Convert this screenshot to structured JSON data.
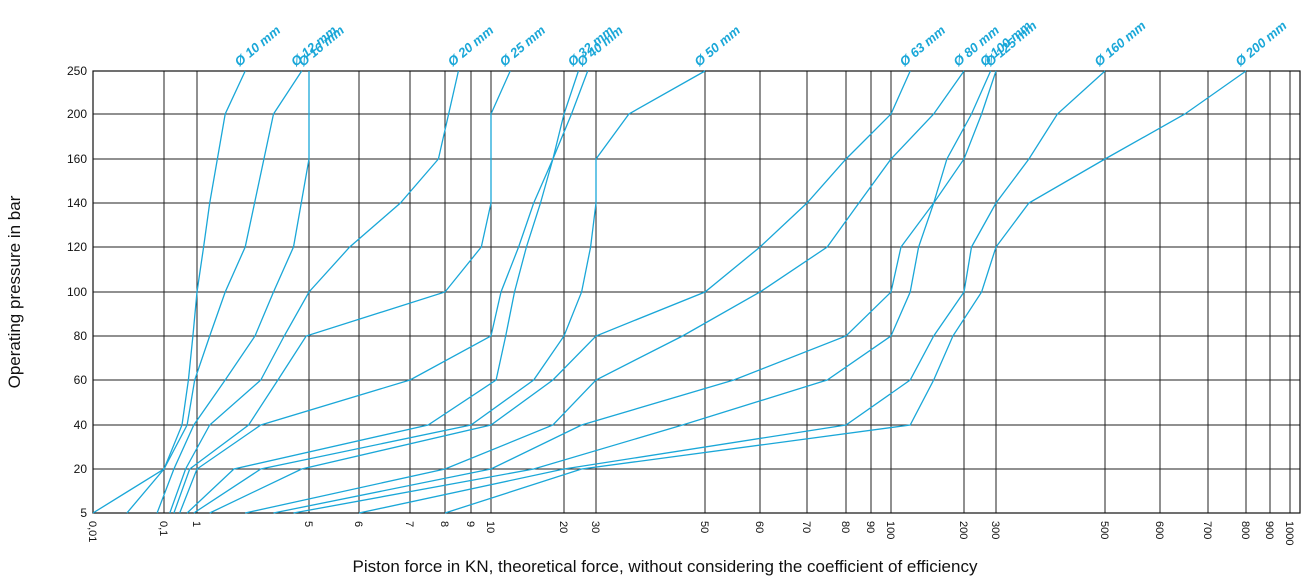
{
  "chart_data": {
    "type": "line",
    "title": "",
    "xlabel": "Piston force in KN, theoretical force, without considering the coefficient of efficiency",
    "ylabel": "Operating pressure in bar",
    "y_ticks": [
      5,
      20,
      40,
      60,
      80,
      100,
      120,
      140,
      160,
      200,
      250
    ],
    "x_ticks": [
      {
        "label": "0,01",
        "value": 0.01
      },
      {
        "label": "0,1",
        "value": 0.1
      },
      {
        "label": "1",
        "value": 1
      },
      {
        "label": "5",
        "value": 5
      },
      {
        "label": "6",
        "value": 6
      },
      {
        "label": "7",
        "value": 7
      },
      {
        "label": "8",
        "value": 8
      },
      {
        "label": "9",
        "value": 9
      },
      {
        "label": "10",
        "value": 10
      },
      {
        "label": "20",
        "value": 20
      },
      {
        "label": "30",
        "value": 30
      },
      {
        "label": "50",
        "value": 50
      },
      {
        "label": "60",
        "value": 60
      },
      {
        "label": "70",
        "value": 70
      },
      {
        "label": "80",
        "value": 80
      },
      {
        "label": "90",
        "value": 90
      },
      {
        "label": "100",
        "value": 100
      },
      {
        "label": "200",
        "value": 200
      },
      {
        "label": "300",
        "value": 300
      },
      {
        "label": "500",
        "value": 500
      },
      {
        "label": "600",
        "value": 600
      },
      {
        "label": "700",
        "value": 700
      },
      {
        "label": "800",
        "value": 800
      },
      {
        "label": "900",
        "value": 900
      },
      {
        "label": "1000",
        "value": 1000
      }
    ],
    "grid": true,
    "line_color": "#1aa7d8",
    "series": [
      {
        "name": "Ø 10 mm",
        "points": [
          [
            0.01,
            5
          ],
          [
            0.1,
            20
          ],
          [
            0.35,
            40
          ],
          [
            0.55,
            60
          ],
          [
            0.75,
            80
          ],
          [
            1,
            100
          ],
          [
            1.1,
            120
          ],
          [
            1.2,
            140
          ],
          [
            1.5,
            200
          ],
          [
            2,
            250
          ]
        ]
      },
      {
        "name": "Ø 12 mm",
        "points": [
          [
            0.03,
            5
          ],
          [
            0.1,
            20
          ],
          [
            0.5,
            40
          ],
          [
            0.85,
            60
          ],
          [
            1.2,
            80
          ],
          [
            1.5,
            100
          ],
          [
            2,
            120
          ],
          [
            3,
            200
          ],
          [
            4.5,
            250
          ]
        ]
      },
      {
        "name": "Ø 16 mm",
        "points": [
          [
            0.08,
            5
          ],
          [
            0.2,
            20
          ],
          [
            0.8,
            40
          ],
          [
            1.5,
            60
          ],
          [
            2.3,
            80
          ],
          [
            3,
            100
          ],
          [
            4,
            120
          ],
          [
            5,
            160
          ],
          [
            5,
            250
          ]
        ]
      },
      {
        "name": "Ø 20 mm",
        "points": [
          [
            0.15,
            5
          ],
          [
            0.45,
            20
          ],
          [
            1.2,
            40
          ],
          [
            2.5,
            60
          ],
          [
            3.5,
            80
          ],
          [
            5,
            100
          ],
          [
            5.8,
            120
          ],
          [
            6.8,
            140
          ],
          [
            7.8,
            160
          ],
          [
            8.5,
            250
          ]
        ]
      },
      {
        "name": "Ø 25 mm",
        "points": [
          [
            0.2,
            5
          ],
          [
            0.6,
            20
          ],
          [
            2.1,
            40
          ],
          [
            3.2,
            60
          ],
          [
            4.8,
            80
          ],
          [
            8,
            100
          ],
          [
            9.5,
            120
          ],
          [
            10,
            140
          ],
          [
            10,
            160
          ],
          [
            10,
            200
          ],
          [
            12,
            250
          ]
        ]
      },
      {
        "name": "Ø 32 mm",
        "points": [
          [
            0.3,
            5
          ],
          [
            1,
            20
          ],
          [
            2.5,
            40
          ],
          [
            7,
            60
          ],
          [
            10,
            80
          ],
          [
            11,
            100
          ],
          [
            13,
            120
          ],
          [
            15,
            140
          ],
          [
            18,
            160
          ],
          [
            20,
            200
          ],
          [
            24,
            250
          ]
        ]
      },
      {
        "name": "Ø 40 mm",
        "points": [
          [
            0.5,
            5
          ],
          [
            1.7,
            20
          ],
          [
            7.5,
            40
          ],
          [
            10.5,
            60
          ],
          [
            11.5,
            80
          ],
          [
            12.5,
            100
          ],
          [
            14,
            120
          ],
          [
            16,
            140
          ],
          [
            18,
            160
          ],
          [
            22,
            200
          ],
          [
            27,
            250
          ]
        ]
      },
      {
        "name": "Ø 50 mm",
        "points": [
          [
            0.8,
            5
          ],
          [
            2.5,
            20
          ],
          [
            9,
            40
          ],
          [
            15,
            60
          ],
          [
            20,
            80
          ],
          [
            25,
            100
          ],
          [
            28,
            120
          ],
          [
            30,
            140
          ],
          [
            30,
            160
          ],
          [
            35,
            200
          ],
          [
            50,
            250
          ]
        ]
      },
      {
        "name": "Ø 63 mm",
        "points": [
          [
            1.2,
            5
          ],
          [
            4.5,
            20
          ],
          [
            10,
            40
          ],
          [
            18,
            60
          ],
          [
            30,
            80
          ],
          [
            50,
            100
          ],
          [
            60,
            120
          ],
          [
            70,
            140
          ],
          [
            80,
            160
          ],
          [
            100,
            200
          ],
          [
            120,
            250
          ]
        ]
      },
      {
        "name": "Ø 80 mm",
        "points": [
          [
            2,
            5
          ],
          [
            8,
            20
          ],
          [
            18,
            40
          ],
          [
            30,
            60
          ],
          [
            45,
            80
          ],
          [
            60,
            100
          ],
          [
            75,
            120
          ],
          [
            85,
            140
          ],
          [
            100,
            160
          ],
          [
            150,
            200
          ],
          [
            200,
            250
          ]
        ]
      },
      {
        "name": "Ø 100 mm",
        "points": [
          [
            3,
            5
          ],
          [
            10,
            20
          ],
          [
            25,
            40
          ],
          [
            55,
            60
          ],
          [
            80,
            80
          ],
          [
            100,
            100
          ],
          [
            110,
            120
          ],
          [
            150,
            140
          ],
          [
            170,
            160
          ],
          [
            220,
            200
          ],
          [
            280,
            250
          ]
        ]
      },
      {
        "name": "Ø 125 mm",
        "points": [
          [
            4,
            5
          ],
          [
            15,
            20
          ],
          [
            45,
            40
          ],
          [
            75,
            60
          ],
          [
            100,
            80
          ],
          [
            120,
            100
          ],
          [
            130,
            120
          ],
          [
            150,
            140
          ],
          [
            200,
            160
          ],
          [
            250,
            200
          ],
          [
            300,
            250
          ]
        ]
      },
      {
        "name": "Ø 160 mm",
        "points": [
          [
            6,
            5
          ],
          [
            20,
            20
          ],
          [
            80,
            40
          ],
          [
            120,
            60
          ],
          [
            150,
            80
          ],
          [
            200,
            100
          ],
          [
            220,
            120
          ],
          [
            300,
            140
          ],
          [
            350,
            160
          ],
          [
            400,
            200
          ],
          [
            500,
            250
          ]
        ]
      },
      {
        "name": "Ø 200 mm",
        "points": [
          [
            8,
            5
          ],
          [
            25,
            20
          ],
          [
            120,
            40
          ],
          [
            150,
            60
          ],
          [
            180,
            80
          ],
          [
            250,
            100
          ],
          [
            300,
            120
          ],
          [
            350,
            140
          ],
          [
            500,
            160
          ],
          [
            650,
            200
          ],
          [
            800,
            250
          ]
        ]
      }
    ]
  }
}
